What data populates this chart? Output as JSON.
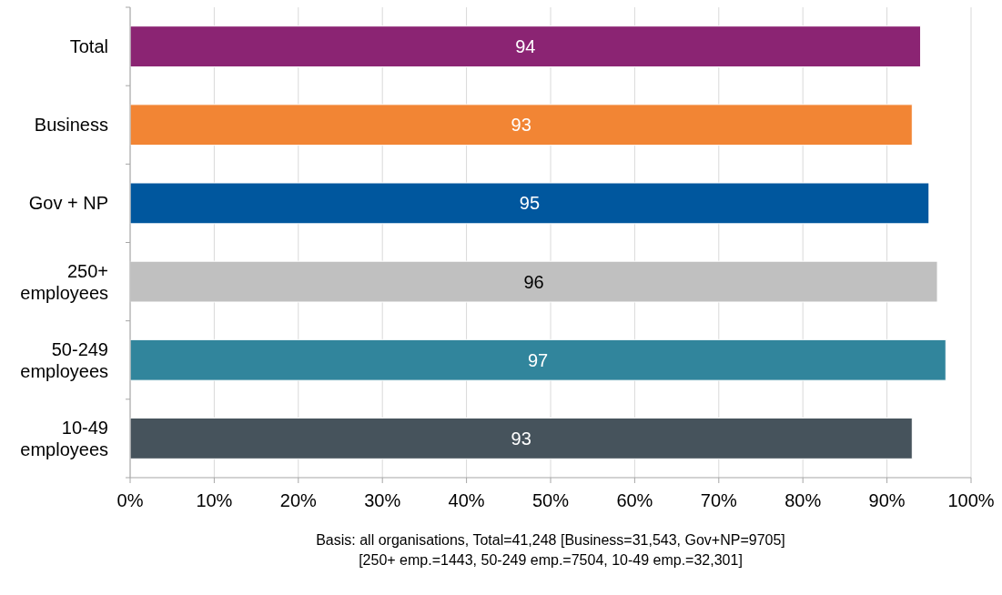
{
  "chart_data": {
    "type": "bar",
    "orientation": "horizontal",
    "categories": [
      "Total",
      "Business",
      "Gov + NP",
      "250+ employees",
      "50-249 employees",
      "10-49 employees"
    ],
    "values": [
      94,
      93,
      95,
      96,
      97,
      93
    ],
    "colors": [
      "#8b2473",
      "#f28534",
      "#00579e",
      "#c0c0c0",
      "#31859c",
      "#46535c"
    ],
    "xlim": [
      0,
      100
    ],
    "xticks": [
      {
        "value": 0,
        "label": "0%"
      },
      {
        "value": 10,
        "label": "10%"
      },
      {
        "value": 20,
        "label": "20%"
      },
      {
        "value": 30,
        "label": "30%"
      },
      {
        "value": 40,
        "label": "40%"
      },
      {
        "value": 50,
        "label": "50%"
      },
      {
        "value": 60,
        "label": "60%"
      },
      {
        "value": 70,
        "label": "70%"
      },
      {
        "value": 80,
        "label": "80%"
      },
      {
        "value": 90,
        "label": "90%"
      },
      {
        "value": 100,
        "label": "100%"
      }
    ],
    "grid": "x",
    "data_labels": true,
    "annotations": [
      "Basis: all organisations, Total=41,248 [Business=31,543, Gov+NP=9705]",
      "[250+ emp.=1443, 50-249 emp.=7504, 10-49 emp.=32,301]"
    ]
  }
}
